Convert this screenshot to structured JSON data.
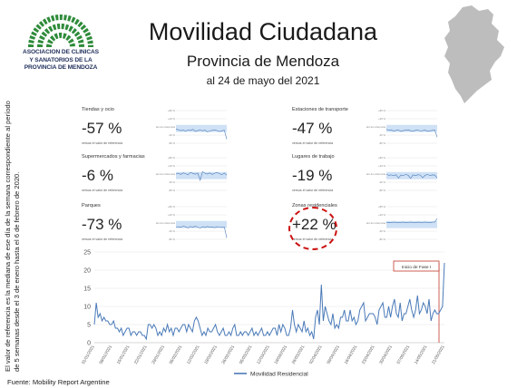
{
  "logo": {
    "line1": "ASOCIACION DE CLINICAS",
    "line2": "Y SANATORIOS DE LA",
    "line3": "PROVINCIA DE MENDOZA",
    "color": "#2e8b3a"
  },
  "header": {
    "title": "Movilidad Ciudadana",
    "subtitle": "Provincia de Mendoza",
    "date": "al 24 de mayo del 2021"
  },
  "side_note": "El valor de referencia es la mediana de ese día de la semana correspondiente al período de 5 semanas desde el 3 de enero hasta el 6 de febrero de 2020.",
  "source": "Fuente: Mobility Report Argentine",
  "cards": [
    {
      "category": "Tiendas y ocio",
      "value": "-57 %",
      "note": "versus el valor de referencia",
      "spark": [
        -10,
        -14,
        -18,
        -16,
        -20,
        -15,
        -17,
        -12,
        -22,
        -18,
        -15,
        -19,
        -16,
        -24,
        -20,
        -17,
        -14,
        -18,
        -23,
        -19,
        -16,
        -60
      ]
    },
    {
      "category": "Estaciones de transporte",
      "value": "-47 %",
      "note": "versus el valor de referencia",
      "spark": [
        -12,
        -16,
        -14,
        -20,
        -17,
        -15,
        -22,
        -18,
        -16,
        -14,
        -19,
        -21,
        -17,
        -15,
        -20,
        -18,
        -16,
        -22,
        -19,
        -17,
        -15,
        -50
      ]
    },
    {
      "category": "Supermercados y farmacias",
      "value": "-6 %",
      "note": "versus el valor de referencia",
      "spark": [
        0,
        4,
        -2,
        6,
        2,
        -4,
        8,
        3,
        -1,
        5,
        -30,
        12,
        4,
        0,
        6,
        -2,
        4,
        8,
        2,
        -3,
        5,
        -6
      ]
    },
    {
      "category": "Lugares de trabajo",
      "value": "-19 %",
      "note": "versus el valor de referencia",
      "spark": [
        -2,
        -6,
        -4,
        -8,
        -3,
        -20,
        -5,
        -7,
        -2,
        -6,
        -22,
        -4,
        -8,
        -3,
        -5,
        -18,
        -6,
        -2,
        -7,
        -4,
        -5,
        -19
      ]
    },
    {
      "category": "Parques",
      "value": "-73 %",
      "note": "versus el valor de referencia",
      "spark": [
        -20,
        -18,
        -22,
        -15,
        -19,
        -24,
        -17,
        -21,
        -16,
        -20,
        -25,
        -18,
        -22,
        -17,
        -21,
        -19,
        -23,
        -18,
        -20,
        -22,
        -19,
        -73
      ]
    },
    {
      "category": "Zonas residenciales",
      "value": "+22 %",
      "note": "versus el valor de referencia",
      "spark": [
        2,
        3,
        2,
        4,
        3,
        2,
        3,
        4,
        2,
        3,
        4,
        3,
        2,
        4,
        3,
        3,
        4,
        3,
        2,
        4,
        5,
        22
      ]
    }
  ],
  "spark_axis": {
    "ticks": [
      "+80 %",
      "+40 %",
      "Valor de referencia",
      "-40 %",
      "-80 %"
    ],
    "range": [
      -80,
      80
    ]
  },
  "chart_data": {
    "type": "line",
    "ylim": [
      0,
      25
    ],
    "yticks": [
      "0",
      "5",
      "10",
      "15",
      "20",
      "25"
    ],
    "series": [
      {
        "name": "Movilidad Residencial",
        "color": "#4a7ab8",
        "values": [
          5,
          11,
          7,
          8,
          6,
          7,
          6,
          6,
          5,
          5,
          6,
          4,
          4,
          3,
          4,
          2,
          3,
          4,
          4,
          2,
          3,
          3,
          2,
          3,
          3,
          2,
          2,
          1,
          5,
          5,
          4,
          5,
          4,
          2,
          3,
          2,
          4,
          3,
          5,
          3,
          4,
          2,
          4,
          4,
          3,
          4,
          5,
          5,
          3,
          5,
          4,
          3,
          6,
          7,
          6,
          4,
          2,
          3,
          2,
          4,
          3,
          3,
          4,
          5,
          3,
          2,
          3,
          4,
          2,
          2,
          3,
          2,
          4,
          5,
          2,
          2,
          3,
          2,
          3,
          3,
          2,
          3,
          4,
          2,
          3,
          2,
          3,
          4,
          2,
          2,
          3,
          2,
          3,
          4,
          4,
          2,
          5,
          3,
          5,
          4,
          2,
          2,
          4,
          9,
          5,
          3,
          5,
          4,
          3,
          6,
          3,
          4,
          2,
          3,
          1,
          7,
          9,
          5,
          16,
          6,
          10,
          8,
          6,
          5,
          8,
          4,
          5,
          4,
          7,
          7,
          9,
          6,
          6,
          9,
          6,
          7,
          5,
          6,
          9,
          10,
          11,
          6,
          7,
          8,
          8,
          8,
          7,
          5,
          9,
          10,
          11,
          7,
          7,
          10,
          7,
          10,
          12,
          8,
          7,
          11,
          6,
          8,
          8,
          10,
          12,
          9,
          7,
          9,
          13,
          8,
          9,
          11,
          10,
          8,
          12,
          6,
          8,
          9,
          8,
          8,
          9,
          10,
          22
        ]
      }
    ],
    "xticks": [
      "01/01/2021",
      "08/01/2021",
      "15/01/2021",
      "22/01/2021",
      "29/01/2021",
      "05/02/2021",
      "12/02/2021",
      "19/02/2021",
      "26/02/2021",
      "05/03/2021",
      "12/03/2021",
      "19/03/2021",
      "26/03/2021",
      "02/04/2021",
      "09/04/2021",
      "16/04/2021",
      "23/04/2021",
      "30/04/2021",
      "07/05/2021",
      "14/05/2021",
      "21/05/2021"
    ],
    "annotation": {
      "label": "Inicio de Fase I",
      "color": "#c0392b"
    }
  }
}
